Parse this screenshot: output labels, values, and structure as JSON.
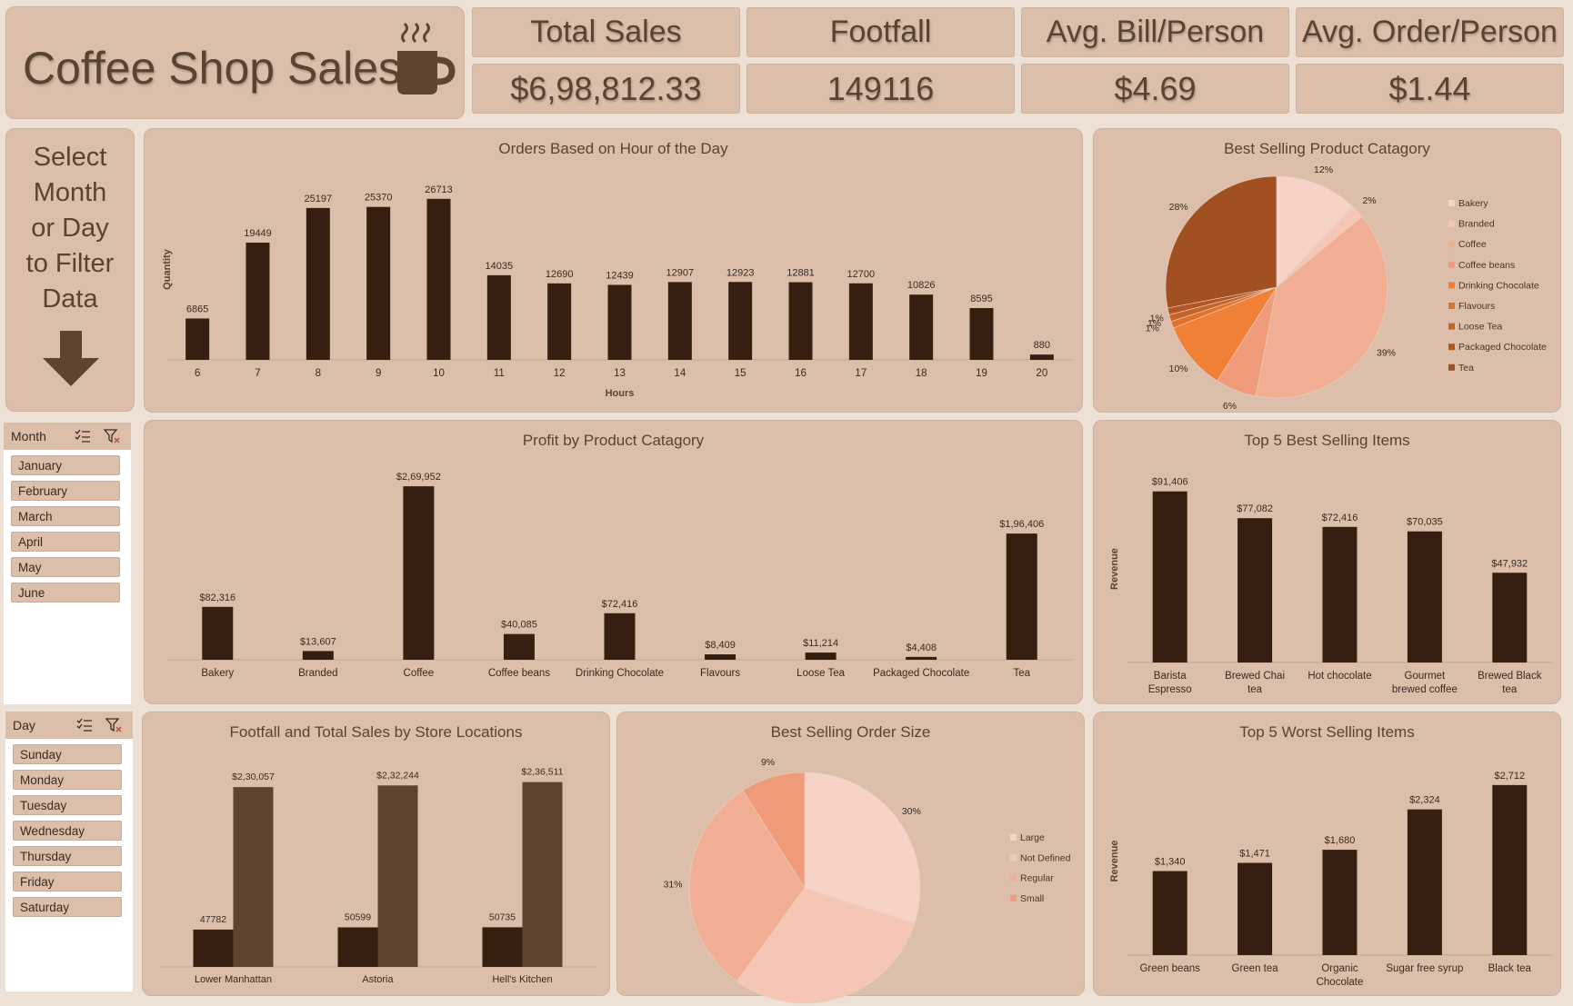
{
  "header": {
    "title": "Coffee Shop Sales",
    "icon": "coffee-cup-icon"
  },
  "kpis": [
    {
      "label": "Total Sales",
      "value": "$6,98,812.33"
    },
    {
      "label": "Footfall",
      "value": "149116"
    },
    {
      "label": "Avg. Bill/Person",
      "value": "$4.69"
    },
    {
      "label": "Avg. Order/Person",
      "value": "$1.44"
    }
  ],
  "filter_hint": {
    "lines": [
      "Select",
      "Month",
      "or Day",
      "to Filter",
      "Data"
    ],
    "icon": "arrow-down-icon"
  },
  "slicers": {
    "month": {
      "title": "Month",
      "items": [
        "January",
        "February",
        "March",
        "April",
        "May",
        "June"
      ]
    },
    "day": {
      "title": "Day",
      "items": [
        "Sunday",
        "Monday",
        "Tuesday",
        "Wednesday",
        "Thursday",
        "Friday",
        "Saturday"
      ]
    }
  },
  "colors": {
    "dark_bar": "#361f11",
    "mid_bar": "#5e4530",
    "pie_palette": [
      "#f6d3c6",
      "#f5c6b6",
      "#f1ae94",
      "#f09c7a",
      "#ef8036",
      "#e1712b",
      "#c8622a",
      "#b35626",
      "#a05021"
    ]
  },
  "chart_data": [
    {
      "id": "hourly",
      "type": "bar",
      "title": "Orders Based on Hour of the Day",
      "xlabel": "Hours",
      "ylabel": "Quantity",
      "categories": [
        "6",
        "7",
        "8",
        "9",
        "10",
        "11",
        "12",
        "13",
        "14",
        "15",
        "16",
        "17",
        "18",
        "19",
        "20"
      ],
      "values": [
        6865,
        19449,
        25197,
        25370,
        26713,
        14035,
        12690,
        12439,
        12907,
        12923,
        12881,
        12700,
        10826,
        8595,
        880
      ],
      "labels": [
        "6865",
        "19449",
        "25197",
        "25370",
        "26713",
        "14035",
        "12690",
        "12439",
        "12907",
        "12923",
        "12881",
        "12700",
        "10826",
        "8595",
        "880"
      ],
      "ylim": [
        0,
        30000
      ]
    },
    {
      "id": "category_pie",
      "type": "pie",
      "title": "Best Selling Product Catagory",
      "categories": [
        "Bakery",
        "Branded",
        "Coffee",
        "Coffee beans",
        "Drinking Chocolate",
        "Flavours",
        "Loose Tea",
        "Packaged Chocolate",
        "Tea"
      ],
      "values": [
        12,
        2,
        39,
        6,
        10,
        1,
        1,
        1,
        28
      ],
      "labels": [
        "12%",
        "2%",
        "39%",
        "6%",
        "10%",
        "1%",
        "1%",
        "1%",
        "28%"
      ],
      "legend": "right"
    },
    {
      "id": "profit",
      "type": "bar",
      "title": "Profit by Product Catagory",
      "categories": [
        "Bakery",
        "Branded",
        "Coffee",
        "Coffee beans",
        "Drinking Chocolate",
        "Flavours",
        "Loose Tea",
        "Packaged Chocolate",
        "Tea"
      ],
      "values": [
        82316,
        13607,
        269952,
        40085,
        72416,
        8409,
        11214,
        4408,
        196406
      ],
      "labels": [
        "$82,316",
        "$13,607",
        "$2,69,952",
        "$40,085",
        "$72,416",
        "$8,409",
        "$11,214",
        "$4,408",
        "$1,96,406"
      ],
      "ylim": [
        0,
        280000
      ]
    },
    {
      "id": "top5",
      "type": "bar",
      "title": "Top 5 Best Selling Items",
      "ylabel": "Revenue",
      "categories": [
        [
          "Barista",
          "Espresso"
        ],
        [
          "Brewed Chai",
          "tea"
        ],
        [
          "Hot chocolate"
        ],
        [
          "Gourmet",
          "brewed coffee"
        ],
        [
          "Brewed Black",
          "tea"
        ]
      ],
      "values": [
        91406,
        77082,
        72416,
        70035,
        47932
      ],
      "labels": [
        "$91,406",
        "$77,082",
        "$72,416",
        "$70,035",
        "$47,932"
      ],
      "ylim": [
        0,
        100000
      ]
    },
    {
      "id": "stores",
      "type": "bar",
      "title": "Footfall and Total Sales by Store Locations",
      "categories": [
        "Lower Manhattan",
        "Astoria",
        "Hell's Kitchen"
      ],
      "series": [
        {
          "values": [
            47782,
            50599,
            50735
          ],
          "labels": [
            "47782",
            "50599",
            "50735"
          ]
        },
        {
          "values": [
            230057,
            232244,
            236511
          ],
          "labels": [
            "$2,30,057",
            "$2,32,244",
            "$2,36,511"
          ]
        }
      ],
      "ylim": [
        0,
        250000
      ]
    },
    {
      "id": "order_size",
      "type": "pie",
      "title": "Best Selling Order Size",
      "categories": [
        "Large",
        "Not Defined",
        "Regular",
        "Small"
      ],
      "values": [
        30,
        30,
        31,
        9
      ],
      "labels": [
        "30%",
        "30%",
        "31%",
        "9%"
      ],
      "legend": "right"
    },
    {
      "id": "worst5",
      "type": "bar",
      "title": "Top 5 Worst Selling Items",
      "ylabel": "Revenue",
      "categories": [
        [
          "Green beans"
        ],
        [
          "Green tea"
        ],
        [
          "Organic",
          "Chocolate"
        ],
        [
          "Sugar free syrup"
        ],
        [
          "Black tea"
        ]
      ],
      "values": [
        1340,
        1471,
        1680,
        2324,
        2712
      ],
      "labels": [
        "$1,340",
        "$1,471",
        "$1,680",
        "$2,324",
        "$2,712"
      ],
      "ylim": [
        0,
        3000
      ]
    }
  ]
}
